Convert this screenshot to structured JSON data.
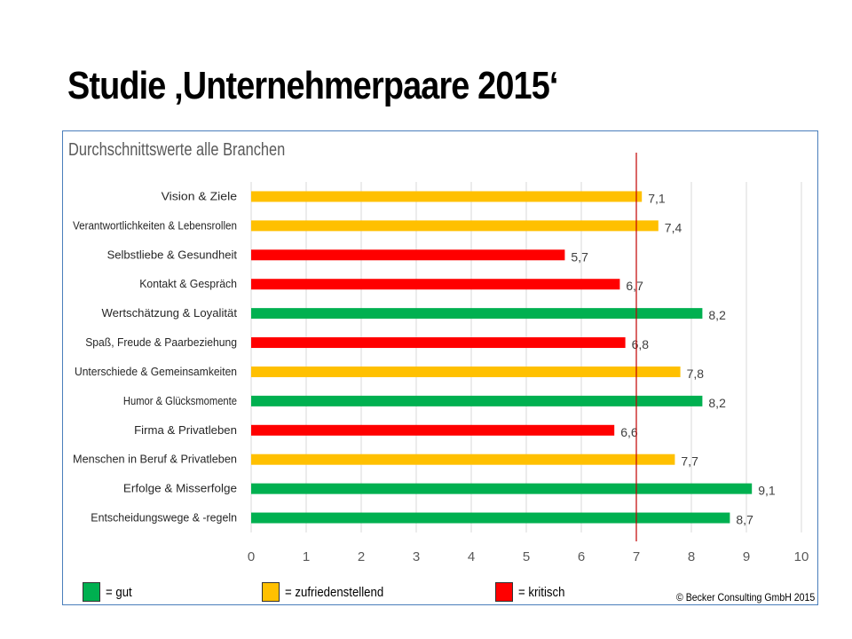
{
  "slide": {
    "title": "Studie ‚Unternehmerpaare 2015‘",
    "copyright": "© Becker Consulting GmbH 2015"
  },
  "legend": [
    {
      "label": "= gut",
      "color": "#00b050"
    },
    {
      "label": "= zufriedenstellend",
      "color": "#ffc000"
    },
    {
      "label": "= kritisch",
      "color": "#ff0000"
    }
  ],
  "chart_data": {
    "type": "bar",
    "orientation": "horizontal",
    "title": "Durchschnittswerte alle Branchen",
    "categories": [
      "Vision & Ziele",
      "Verantwortlichkeiten & Lebensrollen",
      "Selbstliebe & Gesundheit",
      "Kontakt & Gespräch",
      "Wertschätzung & Loyalität",
      "Spaß, Freude & Paarbeziehung",
      "Unterschiede & Gemeinsamkeiten",
      "Humor & Glücksmomente",
      "Firma & Privatleben",
      "Menschen in Beruf & Privatleben",
      "Erfolge & Misserfolge",
      "Entscheidungswege & -regeln"
    ],
    "values": [
      7.1,
      7.4,
      5.7,
      6.7,
      8.2,
      6.8,
      7.8,
      8.2,
      6.6,
      7.7,
      9.1,
      8.7
    ],
    "value_labels": [
      "7,1",
      "7,4",
      "5,7",
      "6,7",
      "8,2",
      "6,8",
      "7,8",
      "8,2",
      "6,6",
      "7,7",
      "9,1",
      "8,7"
    ],
    "colors": [
      "#ffc000",
      "#ffc000",
      "#ff0000",
      "#ff0000",
      "#00b050",
      "#ff0000",
      "#ffc000",
      "#00b050",
      "#ff0000",
      "#ffc000",
      "#00b050",
      "#00b050"
    ],
    "xlim": [
      0,
      10
    ],
    "x_ticks": [
      "0",
      "1",
      "2",
      "3",
      "4",
      "5",
      "6",
      "7",
      "8",
      "9",
      "10"
    ],
    "reference_line": {
      "x": 7,
      "color": "#c00000"
    },
    "grid": true
  }
}
